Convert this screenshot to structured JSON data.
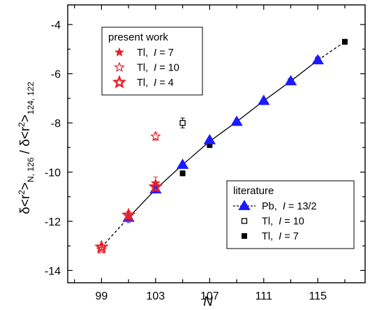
{
  "chart_data": {
    "type": "scatter",
    "xlabel": "N",
    "ylabel": {
      "parts": [
        "δ<r",
        "2",
        ">",
        "N, 126",
        " / δ<r",
        "2",
        ">",
        "124, 122"
      ]
    },
    "xlim": [
      96.5,
      118.5
    ],
    "ylim": [
      -14.5,
      -3.2
    ],
    "x_ticks": [
      "99",
      "103",
      "107",
      "111",
      "115"
    ],
    "x_tick_values": [
      99,
      103,
      107,
      111,
      115
    ],
    "y_ticks": [
      "-4",
      "-6",
      "-8",
      "-10",
      "-12",
      "-14"
    ],
    "y_tick_values": [
      -4,
      -6,
      -8,
      -10,
      -12,
      -14
    ],
    "present_work": {
      "title": "present work",
      "series": [
        {
          "name_prefix": "Tl,",
          "name_var": "I",
          "name_value": " = 7",
          "marker": "star-filled",
          "color": "#e8212a",
          "points": [
            {
              "x": 101,
              "y": -11.8,
              "err": 0.2
            },
            {
              "x": 103,
              "y": -10.45,
              "err": 0.25
            }
          ]
        },
        {
          "name_prefix": "Tl,",
          "name_var": "I",
          "name_value": " = 10",
          "marker": "star-open",
          "color": "#e8212a",
          "points": [
            {
              "x": 99,
              "y": -13.15,
              "err": 0.1
            },
            {
              "x": 103,
              "y": -8.55,
              "err": 0.15
            }
          ]
        },
        {
          "name_prefix": "Tl,",
          "name_var": "I",
          "name_value": " = 4",
          "marker": "star-hollow-thick",
          "color": "#e8212a",
          "points": [
            {
              "x": 99,
              "y": -13.05,
              "err": 0.1
            },
            {
              "x": 101,
              "y": -11.75,
              "err": 0.15
            },
            {
              "x": 103,
              "y": -10.6,
              "err": 0.15
            }
          ]
        }
      ]
    },
    "literature": {
      "title": "literature",
      "series": [
        {
          "name_prefix": "Pb,",
          "name_var": "I",
          "name_value": " = 13/2",
          "marker": "triangle",
          "color": "#1a1aff",
          "line": "dashed",
          "points": [
            {
              "x": 101,
              "y": -11.85,
              "err": 0.2
            },
            {
              "x": 103,
              "y": -10.7,
              "err": 0.15
            },
            {
              "x": 105,
              "y": -9.7,
              "err": 0.1
            },
            {
              "x": 107,
              "y": -8.7,
              "err": 0.1
            },
            {
              "x": 109,
              "y": -7.95,
              "err": 0.1
            },
            {
              "x": 111,
              "y": -7.1,
              "err": 0.1
            },
            {
              "x": 113,
              "y": -6.3,
              "err": 0.1
            },
            {
              "x": 115,
              "y": -5.45,
              "err": 0.15
            }
          ]
        },
        {
          "name_prefix": "Tl,",
          "name_var": "I",
          "name_value": " = 10",
          "marker": "square-open",
          "color": "#000000",
          "points": [
            {
              "x": 105,
              "y": -8.0,
              "err": 0.2
            }
          ]
        },
        {
          "name_prefix": "Tl,",
          "name_var": "I",
          "name_value": " = 7",
          "marker": "square-filled",
          "color": "#000000",
          "points": [
            {
              "x": 101,
              "y": -11.9,
              "err": 0.1
            },
            {
              "x": 103,
              "y": -10.65,
              "err": 0.1
            },
            {
              "x": 105,
              "y": -10.05,
              "err": 0.1
            },
            {
              "x": 107,
              "y": -8.9,
              "err": 0.1
            },
            {
              "x": 109,
              "y": -8.0,
              "err": 0.1
            },
            {
              "x": 111,
              "y": -7.15,
              "err": 0.1
            },
            {
              "x": 113,
              "y": -6.3,
              "err": 0.1
            },
            {
              "x": 115,
              "y": -5.45,
              "err": 0.1
            },
            {
              "x": 117,
              "y": -4.7,
              "err": 0.1
            }
          ]
        }
      ]
    },
    "fit_line": {
      "solid": [
        {
          "x": 101,
          "y": -11.85
        },
        {
          "x": 103,
          "y": -10.7
        },
        {
          "x": 105,
          "y": -9.7
        },
        {
          "x": 107,
          "y": -8.75
        },
        {
          "x": 109,
          "y": -7.95
        },
        {
          "x": 111,
          "y": -7.1
        },
        {
          "x": 113,
          "y": -6.3
        },
        {
          "x": 115,
          "y": -5.45
        }
      ],
      "dashed_low": [
        {
          "x": 99,
          "y": -13.05
        },
        {
          "x": 101,
          "y": -11.85
        }
      ],
      "dashed_high": [
        {
          "x": 115,
          "y": -5.45
        },
        {
          "x": 117,
          "y": -4.7
        }
      ]
    },
    "grid": false,
    "legend_placement": [
      "top-left",
      "bottom-right"
    ]
  }
}
